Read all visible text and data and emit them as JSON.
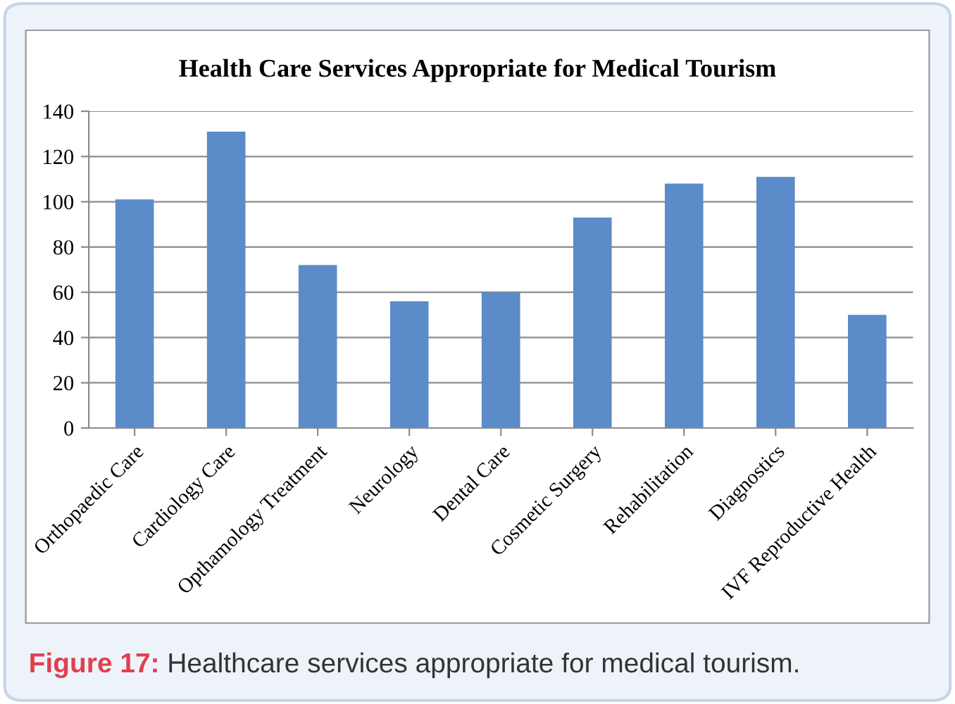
{
  "chart_data": {
    "type": "bar",
    "title": "Health Care Services Appropriate for Medical Tourism",
    "categories": [
      "Orthopaedic Care",
      "Cardiology Care",
      "Opthamology Treatment",
      "Neurology",
      "Dental Care",
      "Cosmetic Surgery",
      "Rehabilitation",
      "Diagnostics",
      "IVF Reproductive Health"
    ],
    "values": [
      101,
      131,
      72,
      56,
      60,
      93,
      108,
      111,
      50
    ],
    "color": "#5b8bc8",
    "ylim": [
      0,
      140
    ],
    "yticks": [
      0,
      20,
      40,
      60,
      80,
      100,
      120,
      140
    ],
    "grid": "y",
    "annotations": [
      "Figure 17:",
      "Healthcare services appropriate for medical tourism."
    ]
  }
}
